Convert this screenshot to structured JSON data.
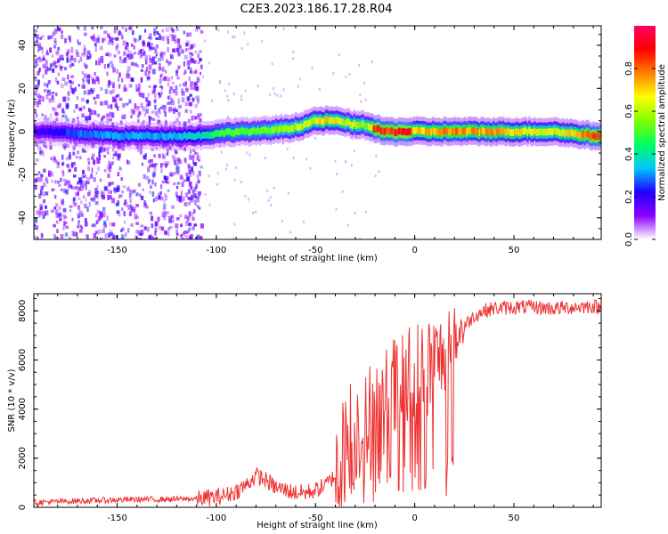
{
  "figure": {
    "title": "C2E3.2023.186.17.28.R04"
  },
  "chart_data": [
    {
      "type": "heatmap",
      "title": "C2E3.2023.186.17.28.R04",
      "xlabel": "Height of straight line (km)",
      "ylabel": "Frequency (Hz)",
      "xlim": [
        -192,
        94
      ],
      "ylim": [
        -50,
        49
      ],
      "xticks": [
        -150,
        -100,
        -50,
        0,
        50
      ],
      "xtick_labels": [
        "-150",
        "-100",
        "-50",
        "0",
        "50"
      ],
      "yticks": [
        -40,
        -20,
        0,
        20,
        40
      ],
      "ytick_labels": [
        "-40",
        "-20",
        "0",
        "20",
        "40"
      ],
      "grid": false,
      "colorbar": {
        "label": "Normalized spectral amplitude",
        "range": [
          0,
          1
        ],
        "ticks": [
          0.0,
          0.2,
          0.4,
          0.6,
          0.8
        ],
        "tick_labels": [
          "0.0",
          "0.2",
          "0.4",
          "0.6",
          "0.8"
        ],
        "colormap": "rainbow",
        "stops": [
          "#ffffff",
          "#8a00ff",
          "#2000ff",
          "#00c8ff",
          "#00ff60",
          "#80ff00",
          "#ffff00",
          "#ff8000",
          "#ff0000",
          "#ff0060"
        ]
      },
      "ridge": {
        "x": [
          -190,
          -170,
          -150,
          -130,
          -110,
          -100,
          -90,
          -80,
          -70,
          -60,
          -50,
          -45,
          -40,
          -35,
          -30,
          -25,
          -20,
          -15,
          -10,
          -5,
          0,
          10,
          20,
          30,
          40,
          50,
          60,
          70,
          80,
          90
        ],
        "y": [
          0,
          -1,
          -2,
          -2,
          -2,
          -1,
          0,
          0,
          1,
          2,
          5,
          5,
          5,
          4,
          3,
          3,
          1,
          0,
          0,
          0,
          0,
          0,
          0,
          0,
          0,
          0,
          0,
          0,
          -1,
          -2
        ],
        "amplitude": [
          0.2,
          0.3,
          0.35,
          0.35,
          0.4,
          0.5,
          0.55,
          0.55,
          0.6,
          0.65,
          0.7,
          0.75,
          0.7,
          0.65,
          0.7,
          0.6,
          0.95,
          0.9,
          0.95,
          1.0,
          0.75,
          0.8,
          0.85,
          0.8,
          0.8,
          0.75,
          0.7,
          0.7,
          0.75,
          0.95
        ]
      },
      "noise_extent_x": [
        -192,
        -108
      ]
    },
    {
      "type": "line",
      "xlabel": "Height of straight line (km)",
      "ylabel": "SNR (10 * v/v)",
      "xlim": [
        -192,
        94
      ],
      "ylim": [
        0,
        8700
      ],
      "xticks": [
        -150,
        -100,
        -50,
        0,
        50
      ],
      "xtick_labels": [
        "-150",
        "-100",
        "-50",
        "0",
        "50"
      ],
      "yticks": [
        0,
        2000,
        4000,
        6000,
        8000
      ],
      "ytick_labels": [
        "0",
        "2000",
        "4000",
        "6000",
        "8000"
      ],
      "grid": false,
      "line_color": "#ee3333",
      "series": [
        {
          "x": [
            -192,
            -180,
            -170,
            -160,
            -150,
            -140,
            -130,
            -120,
            -110,
            -105,
            -100,
            -95,
            -90,
            -85,
            -80,
            -75,
            -70,
            -65,
            -60,
            -55,
            -50,
            -45,
            -40,
            -37,
            -35,
            -32,
            -30,
            -27,
            -25,
            -22,
            -20,
            -18,
            -15,
            -12,
            -10,
            -7,
            -5,
            -2,
            0,
            3,
            5,
            8,
            10,
            13,
            15,
            18,
            20,
            25,
            30,
            35,
            40,
            50,
            60,
            70,
            80,
            90,
            94
          ],
          "y": [
            200,
            230,
            260,
            280,
            300,
            320,
            320,
            330,
            350,
            380,
            420,
            500,
            650,
            900,
            1300,
            1100,
            800,
            700,
            600,
            600,
            700,
            900,
            1300,
            1800,
            2600,
            3000,
            3300,
            3400,
            3000,
            3800,
            4200,
            3400,
            4100,
            4500,
            4700,
            4600,
            4900,
            5200,
            5300,
            5400,
            5600,
            5700,
            5900,
            6100,
            6300,
            6600,
            6900,
            7400,
            7800,
            8000,
            8100,
            8150,
            8150,
            8100,
            8150,
            8200,
            8100
          ]
        }
      ]
    }
  ]
}
